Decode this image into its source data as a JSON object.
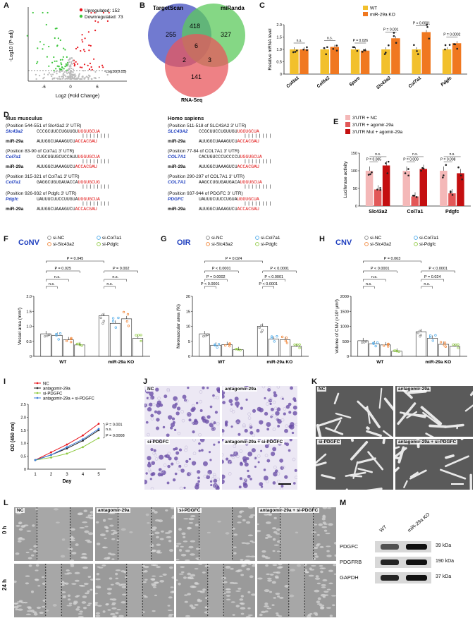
{
  "panelA": {
    "label": "A",
    "legend_up": "Upregulated: 152",
    "legend_down": "Downregulated: 73",
    "threshold_label": "-Log10(0.05)",
    "xlabel": "Log2 (Fold Change)",
    "ylabel": "-Log10 (P-adj)",
    "xticks": [
      "-6",
      "0",
      "6"
    ],
    "colors": {
      "up": "#e8141c",
      "down": "#3cc63c",
      "ns": "#bbbbbb"
    }
  },
  "panelB": {
    "label": "B",
    "set1": "TargetScan",
    "set2": "miRanda",
    "set3": "RNA-Seq",
    "n1": "255",
    "n12": "418",
    "n2": "327",
    "n123": "6",
    "n13": "2",
    "n23": "3",
    "n3": "141",
    "colors": {
      "set1": "#5863c8",
      "set2": "#5cc95c",
      "set3": "#e8575c"
    }
  },
  "panelC": {
    "label": "C",
    "chart_data": {
      "type": "bar",
      "categories": [
        "Col4a1",
        "Col5a2",
        "Sparc",
        "Slc43a2",
        "Col7a1",
        "Pdgfc"
      ],
      "series": [
        {
          "name": "WT",
          "values": [
            1.0,
            1.0,
            1.0,
            1.0,
            1.0,
            1.0
          ],
          "color": "#f2c02c"
        },
        {
          "name": "miR-29a KO",
          "values": [
            1.0,
            1.1,
            0.95,
            1.45,
            1.7,
            1.25
          ],
          "color": "#f07820"
        }
      ],
      "ylabel": "Relative mRNA level",
      "ylim": [
        0,
        2.0
      ],
      "yticks": [
        "0",
        "0.5",
        "1.0",
        "1.5",
        "2.0"
      ],
      "annotations": [
        "n.s.",
        "n.s.",
        "P = 0.026",
        "P = 0.001",
        "P < 0.0001",
        "P = 0.0002"
      ]
    }
  },
  "panelD": {
    "label": "D",
    "mouse_title": "Mus musculus",
    "human_title": "Homo sapiens",
    "mouse_rows": [
      {
        "pos": "(Position 544-551 of Slc43a2 3' UTR)",
        "gene": "Slc43a2",
        "seq": "CCCGCUUCCUGUUGU",
        "seed": "UGGUGCUA",
        "mir": "miR-29a",
        "mirseq": "AUUGGCUAAAGUCU",
        "mirseed": "ACCACGAU"
      },
      {
        "pos": "(Position 83-90 of Col7a1 3' UTR)",
        "gene": "Col7a1",
        "seq": "CUGCUGUGCUCCAUU",
        "seed": "UGGUGCUA",
        "mir": "miR-29a",
        "mirseq": "AUUGGCUAAAGUCU",
        "mirseed": "ACCACGAU"
      },
      {
        "pos": "(Position 315-321 of Col7a1 3' UTR)",
        "gene": "Col7a1",
        "seq": "GAGGCUGUGAUACCA",
        "seed": "UGGUGCUG",
        "mir": "",
        "mirseq": "",
        "mirseed": ""
      },
      {
        "pos": "(Position 926-932 of Pdgfc 3' UTR)",
        "gene": "Pdgfc",
        "seq": "UAUUUCUUCCUUGUA",
        "seed": "UGGUGCUA",
        "mir": "miR-29a",
        "mirseq": "AUUGGCUAAAGUCU",
        "mirseed": "ACCACGAU"
      }
    ],
    "human_rows": [
      {
        "pos": "(Position 511-518 of SLC43A2 3' UTR)",
        "gene": "SLC43A2",
        "seq": "CCGCUUCCUGUUGU",
        "seed": "UGGUGCUA",
        "mir": "miR-29a",
        "mirseq": "AUUGGCUAAAGUCU",
        "mirseed": "ACCACGAU"
      },
      {
        "pos": "(Position 77-84 of COL7A1 3' UTR)",
        "gene": "COL7A1",
        "seq": "CACUGUCCCUCCCCU",
        "seed": "UGGUGCUA",
        "mir": "miR-29a",
        "mirseq": "AUUGGCUAAAGUCU",
        "mirseed": "ACCACGAU"
      },
      {
        "pos": "(Position 290-297 of COL7A1 3' UTR)",
        "gene": "COL7A1",
        "seq": "AAGCCUGUGAUGACA",
        "seed": "UGGUGCUA",
        "mir": "",
        "mirseq": "",
        "mirseed": ""
      },
      {
        "pos": "(Position 937-944 of PDGFC 3' UTR)",
        "gene": "PDGFC",
        "seq": "UAUUUCUUCCUGUA",
        "seed": "UGGUGCUA",
        "mir": "miR-29a",
        "mirseq": "AUUGGCUAAAGUCU",
        "mirseed": "ACCACGAU"
      }
    ]
  },
  "panelE": {
    "label": "E",
    "chart_data": {
      "type": "bar",
      "categories": [
        "Slc43a2",
        "Col7a1",
        "Pdgfc"
      ],
      "series": [
        {
          "name": "3'UTR + NC",
          "values": [
            100,
            100,
            100
          ],
          "color": "#f4b8b8"
        },
        {
          "name": "3'UTR + agomir-29a",
          "values": [
            47,
            27,
            36
          ],
          "color": "#e25858"
        },
        {
          "name": "3'UTR Mut + agomir-29a",
          "values": [
            115,
            105,
            93
          ],
          "color": "#c40f10"
        }
      ],
      "ylabel": "Luciferase activity",
      "ylim": [
        0,
        150
      ],
      "yticks": [
        "0",
        "50",
        "100",
        "150"
      ],
      "annotations": [
        "P = 0.005",
        "n.s.",
        "P = 0.009",
        "n.s.",
        "P = 0.008",
        "n.s."
      ]
    }
  },
  "groupLegend": {
    "items": [
      "si-NC",
      "si-Col7a1",
      "si-Slc43a2",
      "si-Pdgfc"
    ],
    "colors": [
      "#888888",
      "#4aa8e8",
      "#f08030",
      "#8cc83c"
    ]
  },
  "panelF": {
    "label": "F",
    "title": "CoNV",
    "chart_data": {
      "type": "bar",
      "categories": [
        "WT",
        "miR-29a KO"
      ],
      "series": [
        {
          "name": "si-NC",
          "values": [
            0.75,
            1.35
          ]
        },
        {
          "name": "si-Slc43a2",
          "values": [
            0.7,
            1.1
          ]
        },
        {
          "name": "si-Col7a1",
          "values": [
            0.55,
            1.25
          ]
        },
        {
          "name": "si-Pdgfc",
          "values": [
            0.38,
            0.6
          ]
        }
      ],
      "ylabel": "Vessel area (mm²)",
      "ylim": [
        0,
        2.0
      ],
      "yticks": [
        "0",
        "0.5",
        "1.0",
        "1.5",
        "2.0"
      ],
      "annotations": [
        "P = 0.045",
        "P = 0.025",
        "n.s.",
        "n.s.",
        "P = 0.002",
        "n.s.",
        "n.s."
      ]
    }
  },
  "panelG": {
    "label": "G",
    "title": "OIR",
    "chart_data": {
      "type": "bar",
      "categories": [
        "WT",
        "miR-29a KO"
      ],
      "series": [
        {
          "name": "si-NC",
          "values": [
            7.5,
            10.0
          ]
        },
        {
          "name": "si-Slc43a2",
          "values": [
            3.7,
            5.7
          ]
        },
        {
          "name": "si-Col7a1",
          "values": [
            3.9,
            5.5
          ]
        },
        {
          "name": "si-Pdgfc",
          "values": [
            2.2,
            3.3
          ]
        }
      ],
      "ylabel": "Neovascular area (%)",
      "ylim": [
        0,
        20
      ],
      "yticks": [
        "0",
        "5",
        "10",
        "15",
        "20"
      ],
      "annotations": [
        "P = 0.024",
        "P < 0.0001",
        "P = 0.0002",
        "P < 0.0001",
        "P < 0.0001",
        "P < 0.0001",
        "P < 0.0001"
      ]
    }
  },
  "panelH": {
    "label": "H",
    "title": "CNV",
    "chart_data": {
      "type": "bar",
      "categories": [
        "WT",
        "miR-29a KO"
      ],
      "series": [
        {
          "name": "si-NC",
          "values": [
            520,
            820
          ]
        },
        {
          "name": "si-Slc43a2",
          "values": [
            420,
            600
          ]
        },
        {
          "name": "si-Col7a1",
          "values": [
            380,
            400
          ]
        },
        {
          "name": "si-Pdgfc",
          "values": [
            170,
            330
          ]
        }
      ],
      "ylabel": "Volume of CNV (×10³ μm³)",
      "ylim": [
        0,
        2000
      ],
      "yticks": [
        "0",
        "500",
        "1000",
        "1500",
        "2000"
      ],
      "annotations": [
        "P = 0.063",
        "P < 0.0001",
        "n.s.",
        "n.s.",
        "P < 0.0001",
        "P = 0.024",
        "n.s."
      ]
    }
  },
  "panelI": {
    "label": "I",
    "chart_data": {
      "type": "line",
      "x": [
        1,
        2,
        3,
        4,
        5
      ],
      "series": [
        {
          "name": "NC",
          "values": [
            0.35,
            0.65,
            0.95,
            1.3,
            1.75
          ],
          "color": "#e8141c"
        },
        {
          "name": "antagomir-29a",
          "values": [
            0.35,
            0.55,
            0.8,
            1.1,
            1.5
          ],
          "color": "#222222"
        },
        {
          "name": "si-PDGFC",
          "values": [
            0.35,
            0.45,
            0.6,
            0.85,
            1.2
          ],
          "color": "#8cc83c"
        },
        {
          "name": "antagomir-29a + si-PDGFC",
          "values": [
            0.35,
            0.55,
            0.85,
            1.15,
            1.55
          ],
          "color": "#3c7cd8"
        }
      ],
      "xlabel": "Day",
      "ylabel": "OD (450 nm)",
      "ylim": [
        0,
        2.5
      ],
      "yticks": [
        "0",
        "0.5",
        "1.0",
        "1.5",
        "2.0",
        "2.5"
      ],
      "annotations": [
        "P = 0.001",
        "n.s.",
        "P = 0.0008"
      ]
    }
  },
  "panelJ": {
    "label": "J",
    "tiles": [
      "NC",
      "antagomir-29a",
      "si-PDGFC",
      "antagomir-29a + si-PDGFC"
    ]
  },
  "panelK": {
    "label": "K",
    "tiles": [
      "NC",
      "antagomir-29a",
      "si-PDGFC",
      "antagomir-29a + si-PDGFC"
    ]
  },
  "panelL": {
    "label": "L",
    "cols": [
      "NC",
      "antagomir-29a",
      "si-PDGFC",
      "antagomir-29a + si-PDGFC"
    ],
    "rows": [
      "0 h",
      "24 h"
    ]
  },
  "panelM": {
    "label": "M",
    "cols": [
      "WT",
      "miR-29a KO"
    ],
    "bands": [
      {
        "name": "PDGFC",
        "size": "39 kDa"
      },
      {
        "name": "PDGFRB",
        "size": "190 kDa"
      },
      {
        "name": "GAPDH",
        "size": "37 kDa"
      }
    ]
  }
}
